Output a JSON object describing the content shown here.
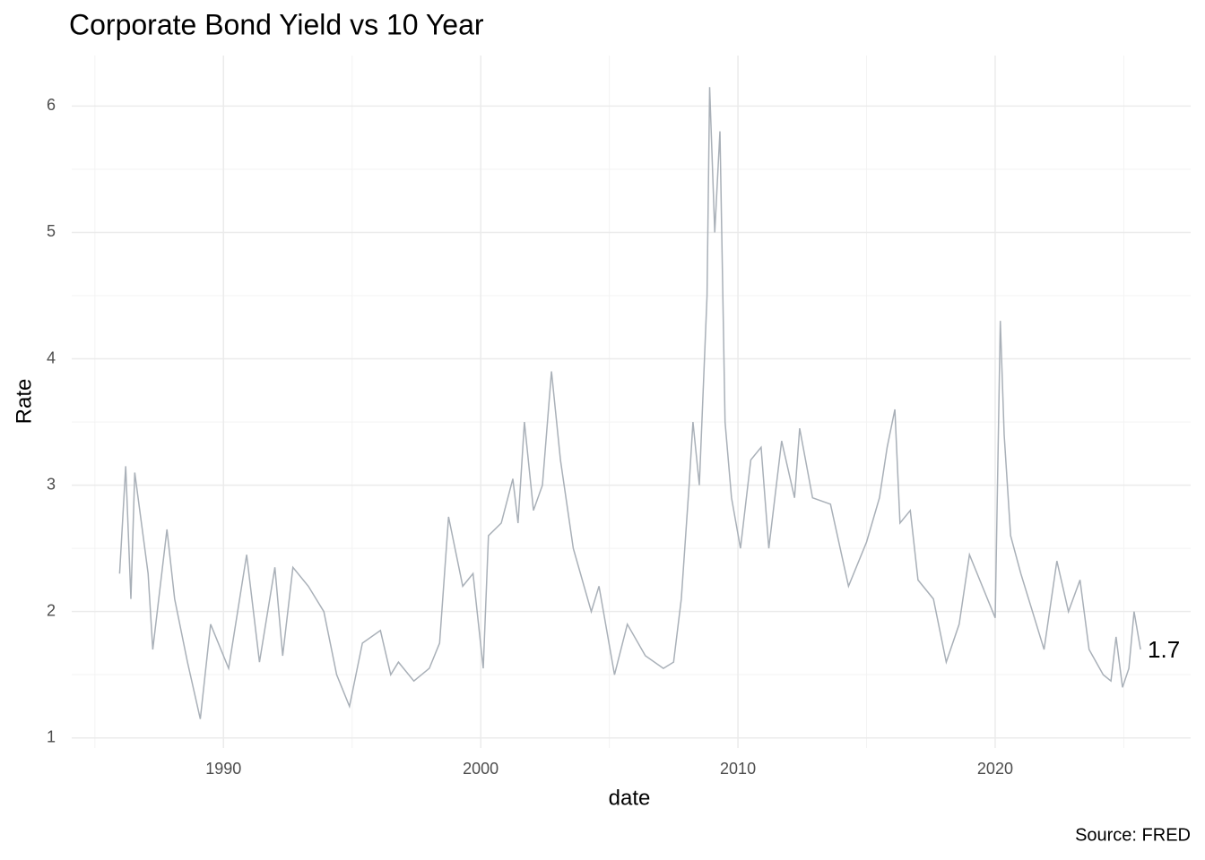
{
  "chart_data": {
    "type": "line",
    "title": "Corporate Bond Yield vs 10 Year",
    "x_label": "date",
    "y_label": "Rate",
    "caption": "Source: FRED",
    "end_label": "1.7",
    "color": "#a9b0b8",
    "grid": true,
    "xlim": [
      1984.1,
      2027.6
    ],
    "xticks": [
      1990,
      2000,
      2010,
      2020
    ],
    "x_minor_breaks": [
      1985,
      1995,
      2005,
      2015,
      2025
    ],
    "ylim": [
      0.92,
      6.4
    ],
    "yticks": [
      1,
      2,
      3,
      4,
      5,
      6
    ],
    "y_minor_breaks": [
      1.5,
      2.5,
      3.5,
      4.5,
      5.5
    ],
    "x": [
      1985.96,
      1986.2,
      1986.4,
      1986.55,
      1987.07,
      1987.25,
      1987.8,
      1988.1,
      1988.6,
      1989.1,
      1989.5,
      1990.2,
      1990.9,
      1991.4,
      1992.0,
      1992.3,
      1992.7,
      1993.3,
      1993.9,
      1994.4,
      1994.9,
      1995.4,
      1996.1,
      1996.5,
      1996.8,
      1997.4,
      1998.0,
      1998.4,
      1998.75,
      1999.3,
      1999.7,
      2000.1,
      2000.3,
      2000.8,
      2001.25,
      2001.45,
      2001.7,
      2002.05,
      2002.4,
      2002.75,
      2003.1,
      2003.6,
      2004.3,
      2004.6,
      2005.2,
      2005.7,
      2006.4,
      2007.1,
      2007.5,
      2007.8,
      2008.1,
      2008.25,
      2008.5,
      2008.8,
      2008.9,
      2009.1,
      2009.3,
      2009.5,
      2009.75,
      2010.1,
      2010.5,
      2010.9,
      2011.2,
      2011.7,
      2012.2,
      2012.4,
      2012.9,
      2013.6,
      2014.3,
      2015.0,
      2015.5,
      2015.8,
      2016.1,
      2016.3,
      2016.7,
      2017.0,
      2017.6,
      2018.1,
      2018.6,
      2019.0,
      2019.5,
      2020.0,
      2020.2,
      2020.35,
      2020.6,
      2021.0,
      2021.6,
      2021.9,
      2022.4,
      2022.85,
      2023.3,
      2023.65,
      2024.2,
      2024.5,
      2024.7,
      2024.95,
      2025.2,
      2025.4,
      2025.65
    ],
    "values": [
      2.3,
      3.15,
      2.1,
      3.1,
      2.3,
      1.7,
      2.65,
      2.1,
      1.6,
      1.15,
      1.9,
      1.55,
      2.45,
      1.6,
      2.35,
      1.65,
      2.35,
      2.2,
      2.0,
      1.5,
      1.25,
      1.75,
      1.85,
      1.5,
      1.6,
      1.45,
      1.55,
      1.75,
      2.75,
      2.2,
      2.3,
      1.55,
      2.6,
      2.7,
      3.05,
      2.7,
      3.5,
      2.8,
      3.0,
      3.9,
      3.2,
      2.5,
      2.0,
      2.2,
      1.5,
      1.9,
      1.65,
      1.55,
      1.6,
      2.1,
      3.0,
      3.5,
      3.0,
      4.5,
      6.15,
      5.0,
      5.8,
      3.5,
      2.9,
      2.5,
      3.2,
      3.3,
      2.5,
      3.35,
      2.9,
      3.45,
      2.9,
      2.85,
      2.2,
      2.55,
      2.9,
      3.3,
      3.6,
      2.7,
      2.8,
      2.25,
      2.1,
      1.6,
      1.9,
      2.45,
      2.2,
      1.95,
      4.3,
      3.4,
      2.6,
      2.3,
      1.9,
      1.7,
      2.4,
      2.0,
      2.25,
      1.7,
      1.5,
      1.45,
      1.8,
      1.4,
      1.55,
      2.0,
      1.7
    ]
  }
}
